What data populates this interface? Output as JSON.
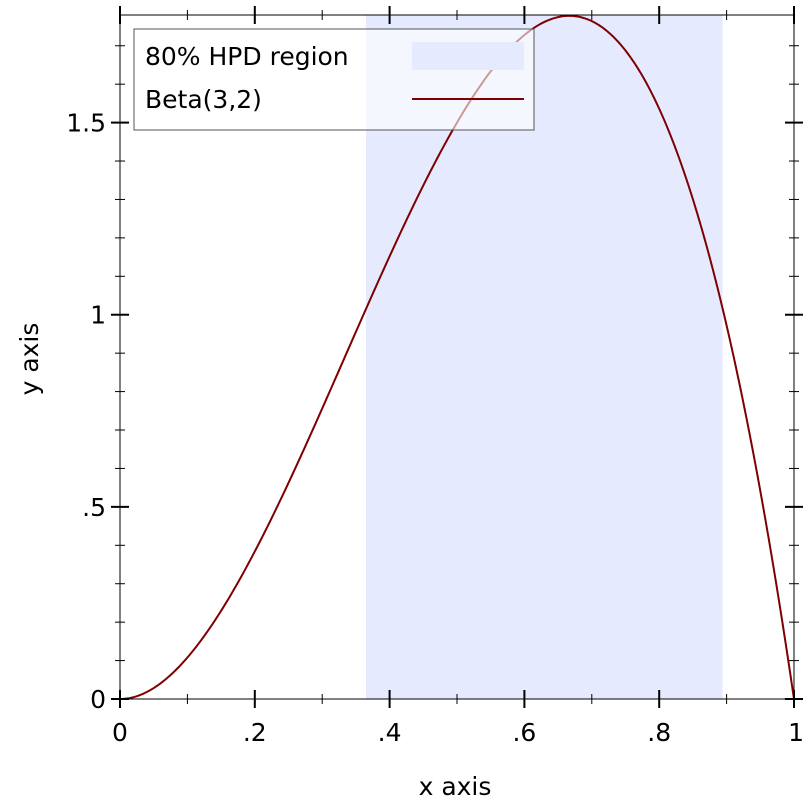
{
  "chart_data": {
    "type": "area",
    "title": "",
    "xlabel": "x axis",
    "ylabel": "y axis",
    "xlim": [
      0,
      1
    ],
    "ylim": [
      0,
      1.78
    ],
    "x_ticks": [
      {
        "value": 0,
        "label": "0"
      },
      {
        "value": 0.2,
        "label": ".2"
      },
      {
        "value": 0.4,
        "label": ".4"
      },
      {
        "value": 0.6,
        "label": ".6"
      },
      {
        "value": 0.8,
        "label": ".8"
      },
      {
        "value": 1,
        "label": "1"
      }
    ],
    "y_ticks": [
      {
        "value": 0,
        "label": "0"
      },
      {
        "value": 0.5,
        "label": ".5"
      },
      {
        "value": 1,
        "label": "1"
      },
      {
        "value": 1.5,
        "label": "1.5"
      }
    ],
    "series": [
      {
        "name": "80% HPD region",
        "kind": "interval-fill",
        "color": "#e6eaff",
        "x_range": [
          0.365,
          0.894
        ]
      },
      {
        "name": "Beta(3,2)",
        "kind": "density-line",
        "color": "#7f0000",
        "distribution": {
          "family": "Beta",
          "alpha": 3,
          "beta": 2
        },
        "x": [
          0,
          0.1,
          0.2,
          0.3,
          0.4,
          0.5,
          0.6,
          0.667,
          0.7,
          0.8,
          0.9,
          1
        ],
        "y": [
          0,
          0.108,
          0.384,
          0.756,
          1.152,
          1.5,
          1.728,
          1.778,
          1.764,
          1.536,
          0.972,
          0
        ]
      }
    ],
    "grid": false,
    "legend": {
      "position": "top-left",
      "entries": [
        {
          "label": "80% HPD region",
          "symbol": "fill",
          "color": "#e6eaff"
        },
        {
          "label": "Beta(3,2)",
          "symbol": "line",
          "color": "#7f0000"
        }
      ]
    }
  }
}
